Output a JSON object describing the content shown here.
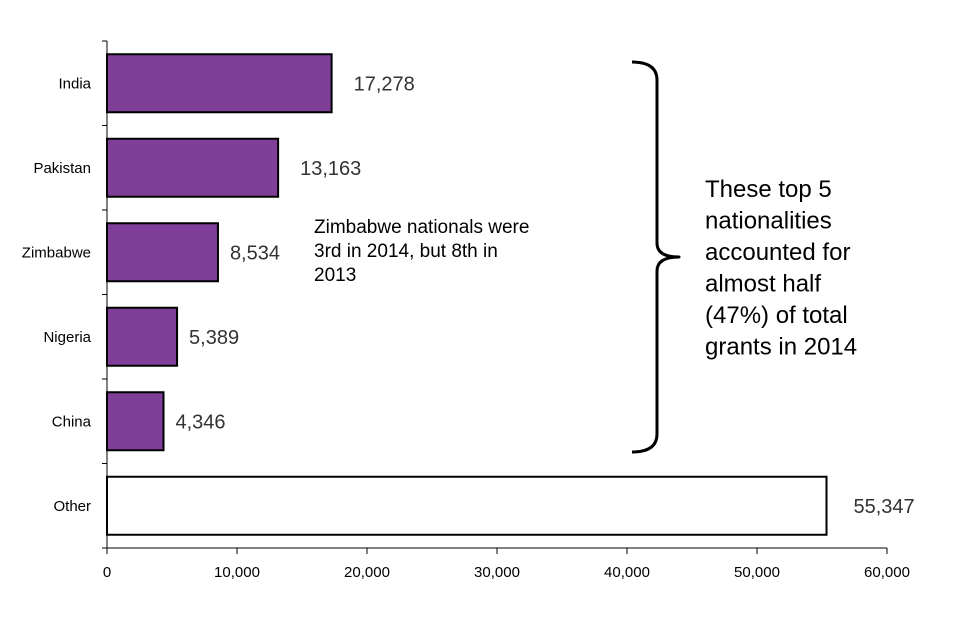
{
  "chart_data": {
    "type": "bar",
    "orientation": "horizontal",
    "categories": [
      "India",
      "Pakistan",
      "Zimbabwe",
      "Nigeria",
      "China",
      "Other"
    ],
    "values": [
      17278,
      13163,
      8534,
      5389,
      4346,
      55347
    ],
    "value_labels": [
      "17,278",
      "13,163",
      "8,534",
      "5,389",
      "4,346",
      "55,347"
    ],
    "xlim": [
      0,
      60000
    ],
    "x_ticks": [
      0,
      10000,
      20000,
      30000,
      40000,
      50000,
      60000
    ],
    "x_tick_labels": [
      "0",
      "10,000",
      "20,000",
      "30,000",
      "40,000",
      "50,000",
      "60,000"
    ],
    "grid": false,
    "colors": {
      "highlight": "#7f3f98",
      "other": "#ffffff",
      "outline": "#000000"
    },
    "highlighted_categories": [
      "India",
      "Pakistan",
      "Zimbabwe",
      "Nigeria",
      "China"
    ],
    "annotations": {
      "zimbabwe_note": [
        "Zimbabwe nationals were",
        "3rd in 2014, but 8th in",
        "2013"
      ],
      "bracket_note": [
        "These top 5",
        "nationalities",
        "accounted for",
        "almost half",
        "(47%) of total",
        "grants in 2014"
      ]
    }
  }
}
